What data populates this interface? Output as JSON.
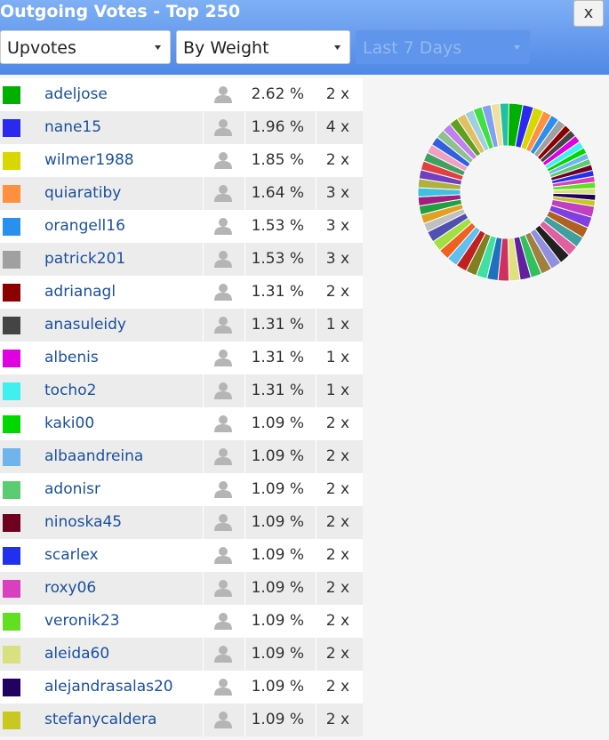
{
  "header": {
    "title": "Outgoing Votes - Top 250",
    "close": "x"
  },
  "filters": [
    "Upvotes",
    "By Weight",
    "Last 7 Days"
  ],
  "rows": [
    {
      "color": "#00b000",
      "name": "adeljose",
      "weight": 2.62,
      "weight_label": "2.62 %",
      "count": "2 x"
    },
    {
      "color": "#2a2aee",
      "name": "nane15",
      "weight": 1.96,
      "weight_label": "1.96 %",
      "count": "4 x"
    },
    {
      "color": "#d8d800",
      "name": "wilmer1988",
      "weight": 1.85,
      "weight_label": "1.85 %",
      "count": "2 x"
    },
    {
      "color": "#ff9040",
      "name": "quiaratiby",
      "weight": 1.64,
      "weight_label": "1.64 %",
      "count": "3 x"
    },
    {
      "color": "#2a90ee",
      "name": "orangell16",
      "weight": 1.53,
      "weight_label": "1.53 %",
      "count": "3 x"
    },
    {
      "color": "#a0a0a0",
      "name": "patrick201",
      "weight": 1.53,
      "weight_label": "1.53 %",
      "count": "3 x"
    },
    {
      "color": "#8b0000",
      "name": "adrianagl",
      "weight": 1.31,
      "weight_label": "1.31 %",
      "count": "2 x"
    },
    {
      "color": "#444444",
      "name": "anasuleidy",
      "weight": 1.31,
      "weight_label": "1.31 %",
      "count": "1 x"
    },
    {
      "color": "#e000e0",
      "name": "albenis",
      "weight": 1.31,
      "weight_label": "1.31 %",
      "count": "1 x"
    },
    {
      "color": "#40f0f0",
      "name": "tocho2",
      "weight": 1.31,
      "weight_label": "1.31 %",
      "count": "1 x"
    },
    {
      "color": "#00d800",
      "name": "kaki00",
      "weight": 1.09,
      "weight_label": "1.09 %",
      "count": "2 x"
    },
    {
      "color": "#70b4ee",
      "name": "albaandreina",
      "weight": 1.09,
      "weight_label": "1.09 %",
      "count": "2 x"
    },
    {
      "color": "#5ccc70",
      "name": "adonisr",
      "weight": 1.09,
      "weight_label": "1.09 %",
      "count": "2 x"
    },
    {
      "color": "#700020",
      "name": "ninoska45",
      "weight": 1.09,
      "weight_label": "1.09 %",
      "count": "2 x"
    },
    {
      "color": "#2030ee",
      "name": "scarlex",
      "weight": 1.09,
      "weight_label": "1.09 %",
      "count": "2 x"
    },
    {
      "color": "#d840c0",
      "name": "roxy06",
      "weight": 1.09,
      "weight_label": "1.09 %",
      "count": "2 x"
    },
    {
      "color": "#60e020",
      "name": "veronik23",
      "weight": 1.09,
      "weight_label": "1.09 %",
      "count": "2 x"
    },
    {
      "color": "#d8e080",
      "name": "aleida60",
      "weight": 1.09,
      "weight_label": "1.09 %",
      "count": "2 x"
    },
    {
      "color": "#200060",
      "name": "alejandrasalas20",
      "weight": 1.09,
      "weight_label": "1.09 %",
      "count": "2 x"
    },
    {
      "color": "#c8c820",
      "name": "stefanycaldera",
      "weight": 1.09,
      "weight_label": "1.09 %",
      "count": "2 x"
    }
  ],
  "donut_rest": [
    {
      "color": "#c040c0",
      "value": 2.0
    },
    {
      "color": "#8040e0",
      "value": 2.0
    },
    {
      "color": "#b06020",
      "value": 2.0
    },
    {
      "color": "#40a0a0",
      "value": 2.0
    },
    {
      "color": "#e060a0",
      "value": 2.0
    },
    {
      "color": "#202020",
      "value": 2.0
    },
    {
      "color": "#9090e0",
      "value": 2.0
    },
    {
      "color": "#a08040",
      "value": 2.0
    },
    {
      "color": "#30c060",
      "value": 2.0
    },
    {
      "color": "#6020a0",
      "value": 2.0
    },
    {
      "color": "#e0e080",
      "value": 2.0
    },
    {
      "color": "#d03060",
      "value": 2.0
    },
    {
      "color": "#2070c0",
      "value": 2.0
    },
    {
      "color": "#40e0a0",
      "value": 2.0
    },
    {
      "color": "#808020",
      "value": 2.0
    },
    {
      "color": "#c02020",
      "value": 2.0
    },
    {
      "color": "#60c0f0",
      "value": 2.0
    },
    {
      "color": "#f06020",
      "value": 2.0
    },
    {
      "color": "#a0e040",
      "value": 2.0
    },
    {
      "color": "#5050b0",
      "value": 2.0
    },
    {
      "color": "#c0c0c0",
      "value": 1.64
    },
    {
      "color": "#e0a020",
      "value": 1.64
    },
    {
      "color": "#20a040",
      "value": 1.64
    },
    {
      "color": "#a02080",
      "value": 1.64
    },
    {
      "color": "#40c0e0",
      "value": 1.64
    },
    {
      "color": "#b0b040",
      "value": 1.64
    },
    {
      "color": "#7040c0",
      "value": 1.64
    },
    {
      "color": "#e04040",
      "value": 1.64
    },
    {
      "color": "#40a060",
      "value": 1.64
    },
    {
      "color": "#f0a0c0",
      "value": 1.64
    },
    {
      "color": "#3060e0",
      "value": 1.64
    },
    {
      "color": "#90c090",
      "value": 1.64
    },
    {
      "color": "#c080f0",
      "value": 1.64
    },
    {
      "color": "#60a020",
      "value": 1.64
    },
    {
      "color": "#e0c060",
      "value": 1.64
    },
    {
      "color": "#a0d0e0",
      "value": 1.64
    },
    {
      "color": "#40e040",
      "value": 1.64
    },
    {
      "color": "#80a0f0",
      "value": 1.64
    },
    {
      "color": "#f0e0a0",
      "value": 1.64
    },
    {
      "color": "#20c0a0",
      "value": 1.64
    }
  ]
}
